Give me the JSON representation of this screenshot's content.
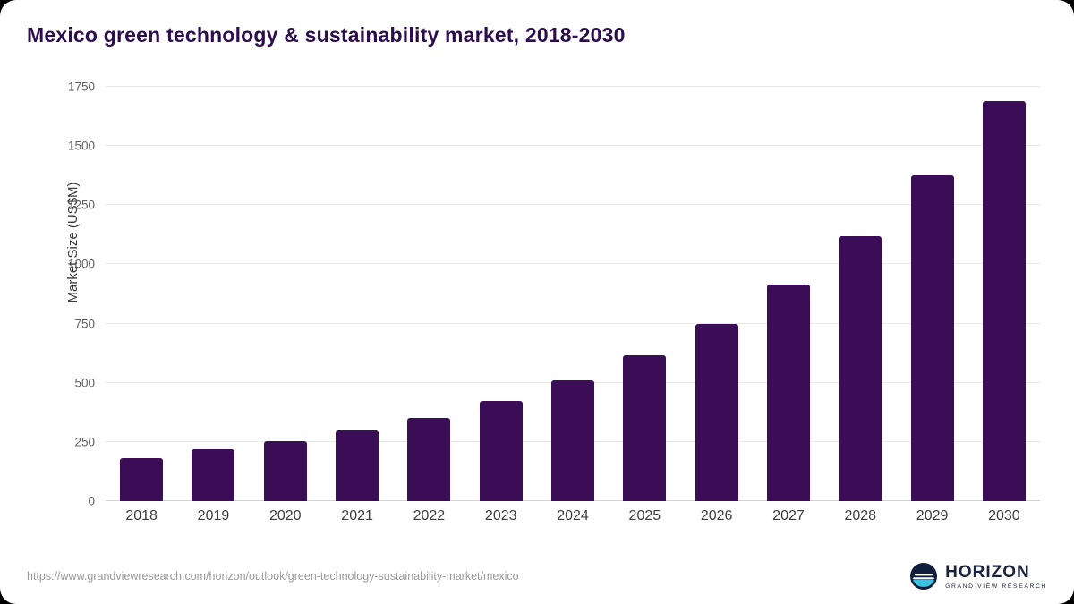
{
  "page": {
    "source_url": "https://www.grandviewresearch.com/horizon/outlook/green-technology-sustainability-market/mexico",
    "logo": {
      "brand": "HORIZON",
      "sub": "GRAND VIEW RESEARCH"
    }
  },
  "chart_data": {
    "type": "bar",
    "title": "Mexico green technology & sustainability market, 2018-2030",
    "xlabel": "",
    "ylabel": "Market Size (US$M)",
    "categories": [
      "2018",
      "2019",
      "2020",
      "2021",
      "2022",
      "2023",
      "2024",
      "2025",
      "2026",
      "2027",
      "2028",
      "2029",
      "2030"
    ],
    "values": [
      180,
      220,
      255,
      297,
      352,
      422,
      510,
      618,
      748,
      915,
      1120,
      1375,
      1690
    ],
    "ylim": [
      0,
      1750
    ],
    "yticks": [
      0,
      250,
      500,
      750,
      1000,
      1250,
      1500,
      1750
    ],
    "grid": true,
    "legend_position": "none",
    "bar_color": "#3a0d56"
  }
}
